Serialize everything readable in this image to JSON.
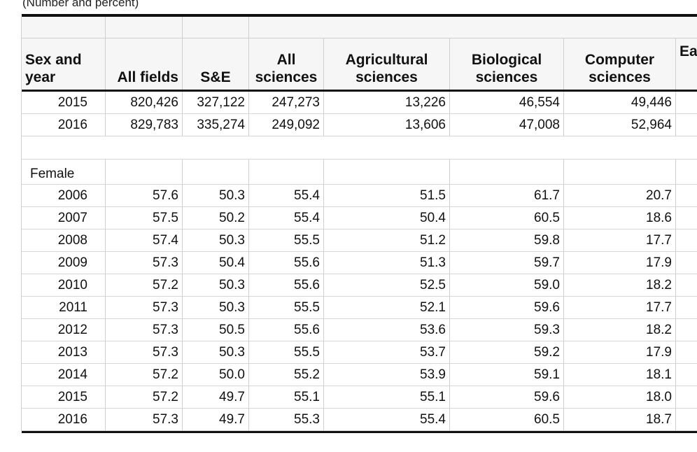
{
  "caption": "(Number and percent)",
  "columns": {
    "sex_year": "Sex and year",
    "all_fields": "All fields",
    "se": "S&E",
    "all_sciences": "All sciences",
    "agricultural": "Agricultural sciences",
    "biological": "Biological sciences",
    "computer": "Computer sciences",
    "next_partial": "Ea"
  },
  "totals_rows": [
    {
      "year": "2015",
      "all_fields": "820,426",
      "se": "327,122",
      "all_sciences": "247,273",
      "agricultural": "13,226",
      "biological": "46,554",
      "computer": "49,446"
    },
    {
      "year": "2016",
      "all_fields": "829,783",
      "se": "335,274",
      "all_sciences": "249,092",
      "agricultural": "13,606",
      "biological": "47,008",
      "computer": "52,964"
    }
  ],
  "female_section": {
    "label": "Female",
    "rows": [
      {
        "year": "2006",
        "all_fields": "57.6",
        "se": "50.3",
        "all_sciences": "55.4",
        "agricultural": "51.5",
        "biological": "61.7",
        "computer": "20.7"
      },
      {
        "year": "2007",
        "all_fields": "57.5",
        "se": "50.2",
        "all_sciences": "55.4",
        "agricultural": "50.4",
        "biological": "60.5",
        "computer": "18.6"
      },
      {
        "year": "2008",
        "all_fields": "57.4",
        "se": "50.3",
        "all_sciences": "55.5",
        "agricultural": "51.2",
        "biological": "59.8",
        "computer": "17.7"
      },
      {
        "year": "2009",
        "all_fields": "57.3",
        "se": "50.4",
        "all_sciences": "55.6",
        "agricultural": "51.3",
        "biological": "59.7",
        "computer": "17.9"
      },
      {
        "year": "2010",
        "all_fields": "57.2",
        "se": "50.3",
        "all_sciences": "55.6",
        "agricultural": "52.5",
        "biological": "59.0",
        "computer": "18.2"
      },
      {
        "year": "2011",
        "all_fields": "57.3",
        "se": "50.3",
        "all_sciences": "55.5",
        "agricultural": "52.1",
        "biological": "59.6",
        "computer": "17.7"
      },
      {
        "year": "2012",
        "all_fields": "57.3",
        "se": "50.5",
        "all_sciences": "55.6",
        "agricultural": "53.6",
        "biological": "59.3",
        "computer": "18.2"
      },
      {
        "year": "2013",
        "all_fields": "57.3",
        "se": "50.3",
        "all_sciences": "55.5",
        "agricultural": "53.7",
        "biological": "59.2",
        "computer": "17.9"
      },
      {
        "year": "2014",
        "all_fields": "57.2",
        "se": "50.0",
        "all_sciences": "55.2",
        "agricultural": "53.9",
        "biological": "59.1",
        "computer": "18.1"
      },
      {
        "year": "2015",
        "all_fields": "57.2",
        "se": "49.7",
        "all_sciences": "55.1",
        "agricultural": "55.1",
        "biological": "59.6",
        "computer": "18.0"
      },
      {
        "year": "2016",
        "all_fields": "57.3",
        "se": "49.7",
        "all_sciences": "55.3",
        "agricultural": "55.4",
        "biological": "60.5",
        "computer": "18.7"
      }
    ]
  }
}
